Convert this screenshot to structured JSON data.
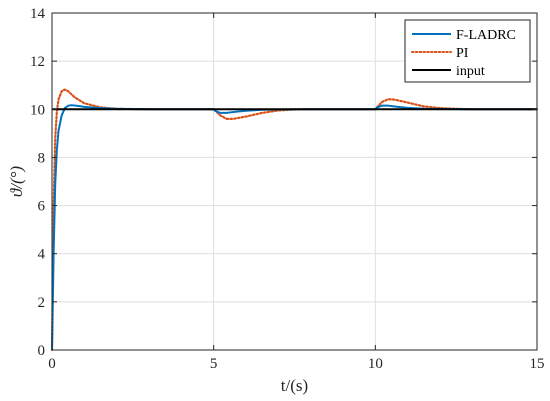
{
  "chart_data": {
    "type": "line",
    "xlabel": "t/(s)",
    "ylabel": "ϑ/(°)",
    "xlim": [
      0,
      15
    ],
    "ylim": [
      0,
      14
    ],
    "xticks": [
      0,
      5,
      10,
      15
    ],
    "yticks": [
      0,
      2,
      4,
      6,
      8,
      10,
      12,
      14
    ],
    "grid": true,
    "legend_position": "top-right",
    "series": [
      {
        "name": "F-LADRC",
        "color": "#0072BD",
        "style": "solid",
        "x": [
          0,
          0.05,
          0.1,
          0.15,
          0.2,
          0.3,
          0.4,
          0.5,
          0.6,
          0.8,
          1.0,
          1.5,
          2,
          3,
          4,
          5,
          5.05,
          5.2,
          5.4,
          5.7,
          6.0,
          6.5,
          7.0,
          8,
          9,
          10,
          10.05,
          10.2,
          10.4,
          10.7,
          11.0,
          11.5,
          12,
          13,
          15
        ],
        "values": [
          0,
          4.0,
          6.9,
          8.3,
          9.1,
          9.75,
          10.05,
          10.15,
          10.17,
          10.14,
          10.1,
          10.05,
          10.02,
          10.0,
          10.0,
          10.0,
          9.93,
          9.85,
          9.85,
          9.9,
          9.94,
          9.98,
          9.99,
          10.0,
          10.0,
          10.0,
          10.07,
          10.15,
          10.15,
          10.1,
          10.06,
          10.02,
          10.01,
          10.0,
          10.0
        ]
      },
      {
        "name": "PI",
        "color": "#D95319",
        "style": "dotted",
        "x": [
          0,
          0.05,
          0.1,
          0.15,
          0.2,
          0.3,
          0.4,
          0.5,
          0.7,
          1.0,
          1.5,
          2,
          3,
          4,
          5,
          5.05,
          5.2,
          5.4,
          5.6,
          6.0,
          6.5,
          7.0,
          7.5,
          8,
          9,
          10,
          10.05,
          10.2,
          10.4,
          10.6,
          11.0,
          11.5,
          12,
          12.5,
          13,
          14,
          15
        ],
        "values": [
          0,
          6.0,
          8.8,
          9.9,
          10.4,
          10.75,
          10.82,
          10.75,
          10.5,
          10.25,
          10.08,
          10.02,
          10.0,
          10.0,
          10.0,
          9.95,
          9.75,
          9.6,
          9.6,
          9.7,
          9.85,
          9.95,
          9.99,
          10.0,
          10.0,
          10.0,
          10.08,
          10.3,
          10.42,
          10.4,
          10.28,
          10.12,
          10.05,
          10.02,
          10.0,
          10.0,
          10.0
        ]
      },
      {
        "name": "input",
        "color": "#000000",
        "style": "solid",
        "x": [
          0,
          15
        ],
        "values": [
          10,
          10
        ]
      }
    ]
  }
}
